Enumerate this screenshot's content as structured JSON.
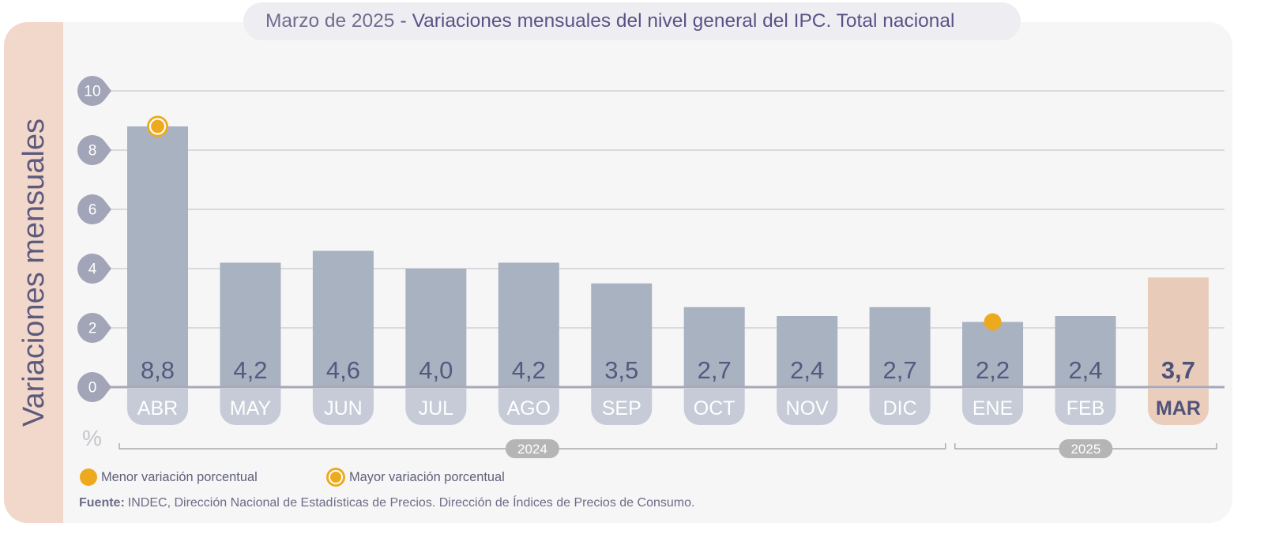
{
  "colors": {
    "bar": "#a8b2c1",
    "highlight_bar": "#e9cbb9",
    "month_tab": "#c6cbd7",
    "highlight_tab": "#ebcdbb",
    "value_text": "#535a7f",
    "highlight_text": "#4f5379",
    "marker": "#eeaa1f",
    "tick_tag": "#a2a4b8",
    "year_pill": "#b5b5b5",
    "y_label_strip": "#f2d8cb"
  },
  "chart_data": {
    "type": "bar",
    "period": "Marzo de 2025",
    "title_separator": "-",
    "title": "Variaciones mensuales del nivel general del IPC. Total nacional",
    "ylabel": "Variaciones mensuales",
    "unit": "%",
    "categories": [
      "ABR",
      "MAY",
      "JUN",
      "JUL",
      "AGO",
      "SEP",
      "OCT",
      "NOV",
      "DIC",
      "ENE",
      "FEB",
      "MAR"
    ],
    "values": [
      8.8,
      4.2,
      4.6,
      4.0,
      4.2,
      3.5,
      2.7,
      2.4,
      2.7,
      2.2,
      2.4,
      3.7
    ],
    "ylim": [
      0,
      10
    ],
    "yticks": [
      0,
      2,
      4,
      6,
      8,
      10
    ],
    "grid": true,
    "highlight_category": "MAR",
    "max_marker_category": "ABR",
    "min_marker_category": "ENE",
    "year_groups": [
      {
        "label": "2024",
        "from": "ABR",
        "to": "DIC"
      },
      {
        "label": "2025",
        "from": "ENE",
        "to": "MAR"
      }
    ],
    "legend_position": "bottom-left",
    "legend": [
      {
        "label": "Menor variación porcentual",
        "marker": "filled-dot-icon"
      },
      {
        "label": "Mayor variación porcentual",
        "marker": "ring-dot-icon"
      }
    ]
  },
  "source": {
    "label": "Fuente:",
    "text": "INDEC, Dirección Nacional de Estadísticas de Precios. Dirección de Índices de Precios de Consumo."
  }
}
